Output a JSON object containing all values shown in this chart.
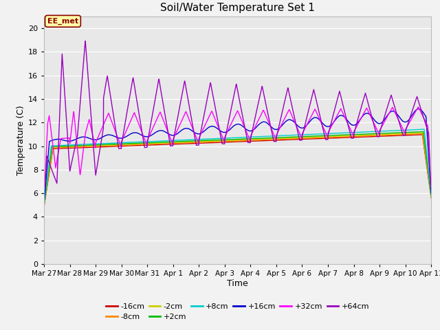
{
  "title": "Soil/Water Temperature Set 1",
  "xlabel": "Time",
  "ylabel": "Temperature (C)",
  "ylim": [
    0,
    21
  ],
  "yticks": [
    0,
    2,
    4,
    6,
    8,
    10,
    12,
    14,
    16,
    18,
    20
  ],
  "xtick_labels": [
    "Mar 27",
    "Mar 28",
    "Mar 29",
    "Mar 30",
    "Mar 31",
    "Apr 1",
    "Apr 2",
    "Apr 3",
    "Apr 4",
    "Apr 5",
    "Apr 6",
    "Apr 7",
    "Apr 8",
    "Apr 9",
    "Apr 10",
    "Apr 11"
  ],
  "annotation_label": "EE_met",
  "bg_outer": "#f2f2f2",
  "bg_plot": "#e8e8e8",
  "grid_color": "#ffffff",
  "series_colors": {
    "-16cm": "#cc0000",
    "-8cm": "#ff8800",
    "-2cm": "#cccc00",
    "+2cm": "#00bb00",
    "+8cm": "#00cccc",
    "+16cm": "#0000cc",
    "+32cm": "#ff00ff",
    "+64cm": "#9900bb"
  }
}
